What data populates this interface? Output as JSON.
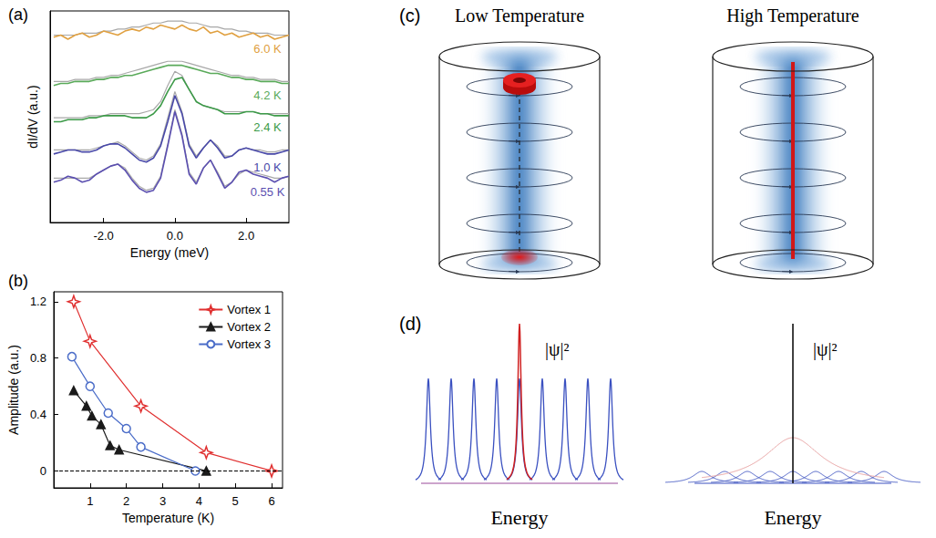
{
  "chart_data": [
    {
      "panel": "(a)",
      "type": "line",
      "x_label": "Energy (meV)",
      "y_label": "dI/dV (a.u.)",
      "x": [
        -3.4,
        -3.2,
        -3.0,
        -2.8,
        -2.6,
        -2.4,
        -2.2,
        -2.0,
        -1.8,
        -1.6,
        -1.4,
        -1.2,
        -1.0,
        -0.8,
        -0.6,
        -0.4,
        -0.2,
        0,
        0.2,
        0.4,
        0.6,
        0.8,
        1.0,
        1.2,
        1.4,
        1.6,
        1.8,
        2.0,
        2.2,
        2.4,
        2.6,
        2.8,
        3.0,
        3.2
      ],
      "xlim": [
        -3.5,
        3.2
      ],
      "xticks": [
        {
          "value": -2,
          "label": "-2.0"
        },
        {
          "value": 0,
          "label": "0.0"
        },
        {
          "value": 2,
          "label": "2.0"
        }
      ],
      "ylim": [
        0,
        10.5
      ],
      "tick_labels": "x",
      "series": [
        {
          "name": "6.0 K",
          "color": "#e0a040",
          "values": [
            9.2,
            9.3,
            9.1,
            9.3,
            9.4,
            9.2,
            9.3,
            9.5,
            9.4,
            9.3,
            9.5,
            9.6,
            9.5,
            9.7,
            9.6,
            9.8,
            9.7,
            9.6,
            9.8,
            9.6,
            9.5,
            9.7,
            9.4,
            9.5,
            9.3,
            9.4,
            9.2,
            9.3,
            9.4,
            9.2,
            9.3,
            9.1,
            9.2,
            9.3
          ],
          "fit": [
            9.3,
            9.3,
            9.3,
            9.3,
            9.4,
            9.4,
            9.4,
            9.5,
            9.5,
            9.6,
            9.6,
            9.7,
            9.7,
            9.8,
            9.9,
            9.9,
            10.0,
            10.0,
            10.0,
            9.9,
            9.9,
            9.8,
            9.7,
            9.7,
            9.6,
            9.6,
            9.5,
            9.5,
            9.4,
            9.4,
            9.4,
            9.3,
            9.3,
            9.3
          ]
        },
        {
          "name": "4.2 K",
          "color": "#5aaa5a",
          "values": [
            6.8,
            6.9,
            6.9,
            7.0,
            7.0,
            7.0,
            7.1,
            7.1,
            7.2,
            7.2,
            7.3,
            7.3,
            7.4,
            7.5,
            7.6,
            7.7,
            7.8,
            7.8,
            7.8,
            7.7,
            7.6,
            7.5,
            7.4,
            7.4,
            7.3,
            7.2,
            7.2,
            7.1,
            7.1,
            7.0,
            7.0,
            7.0,
            6.9,
            6.9
          ],
          "fit": [
            7.0,
            7.0,
            7.0,
            7.1,
            7.1,
            7.1,
            7.2,
            7.2,
            7.3,
            7.3,
            7.4,
            7.5,
            7.6,
            7.7,
            7.8,
            7.9,
            8.0,
            8.0,
            8.0,
            7.9,
            7.8,
            7.7,
            7.6,
            7.5,
            7.4,
            7.3,
            7.3,
            7.2,
            7.2,
            7.1,
            7.1,
            7.1,
            7.0,
            7.0
          ]
        },
        {
          "name": "2.4 K",
          "color": "#3c9a48",
          "values": [
            5.0,
            5.0,
            5.1,
            5.1,
            5.1,
            5.2,
            5.2,
            5.3,
            5.3,
            5.3,
            5.3,
            5.2,
            5.2,
            5.2,
            5.4,
            5.8,
            6.5,
            7.1,
            7.2,
            6.6,
            6.0,
            5.8,
            5.7,
            5.6,
            5.4,
            5.4,
            5.4,
            5.5,
            5.5,
            5.4,
            5.4,
            5.3,
            5.3,
            5.3
          ],
          "fit": [
            5.2,
            5.2,
            5.2,
            5.2,
            5.2,
            5.3,
            5.3,
            5.3,
            5.4,
            5.4,
            5.4,
            5.4,
            5.4,
            5.5,
            5.6,
            6.0,
            6.8,
            7.5,
            7.3,
            6.6,
            6.0,
            5.8,
            5.7,
            5.6,
            5.5,
            5.5,
            5.5,
            5.5,
            5.5,
            5.4,
            5.4,
            5.4,
            5.4,
            5.4
          ]
        },
        {
          "name": "1.0 K",
          "color": "#4848a8",
          "values": [
            3.4,
            3.5,
            3.6,
            3.6,
            3.5,
            3.5,
            3.6,
            3.8,
            3.9,
            3.9,
            3.7,
            3.4,
            3.1,
            3.0,
            3.2,
            3.8,
            5.0,
            6.3,
            5.4,
            3.8,
            3.2,
            3.7,
            4.1,
            3.7,
            3.2,
            3.3,
            3.6,
            3.7,
            3.6,
            3.5,
            3.4,
            3.4,
            3.5,
            3.6
          ],
          "fit": [
            3.6,
            3.6,
            3.6,
            3.6,
            3.6,
            3.6,
            3.7,
            3.8,
            3.9,
            4.0,
            3.8,
            3.5,
            3.2,
            3.1,
            3.3,
            3.9,
            5.2,
            6.5,
            5.5,
            3.9,
            3.3,
            3.7,
            4.1,
            3.8,
            3.3,
            3.3,
            3.6,
            3.7,
            3.6,
            3.6,
            3.5,
            3.5,
            3.6,
            3.6
          ]
        },
        {
          "name": "0.55 K",
          "color": "#5b4fb0",
          "values": [
            2.0,
            2.1,
            2.3,
            2.2,
            2.0,
            2.1,
            2.4,
            2.6,
            2.8,
            2.9,
            2.6,
            2.1,
            1.7,
            1.5,
            1.6,
            2.2,
            3.8,
            5.5,
            4.3,
            2.4,
            1.9,
            2.7,
            3.1,
            2.4,
            1.7,
            2.0,
            2.5,
            2.6,
            2.4,
            2.3,
            2.2,
            2.0,
            2.2,
            2.3
          ],
          "fit": [
            2.2,
            2.2,
            2.2,
            2.2,
            2.2,
            2.2,
            2.4,
            2.6,
            2.8,
            2.9,
            2.7,
            2.2,
            1.8,
            1.6,
            1.7,
            2.3,
            3.9,
            5.6,
            4.4,
            2.5,
            2.0,
            2.7,
            3.1,
            2.5,
            1.8,
            2.0,
            2.4,
            2.6,
            2.5,
            2.4,
            2.3,
            2.2,
            2.2,
            2.3
          ]
        }
      ]
    },
    {
      "panel": "(b)",
      "type": "line",
      "x_label": "Temperature (K)",
      "y_label": "Amplitude (a.u.)",
      "xlim": [
        0,
        6.3
      ],
      "xticks": [
        1,
        2,
        3,
        4,
        5,
        6
      ],
      "ylim": [
        -0.12,
        1.27
      ],
      "yticks": [
        0,
        0.4,
        0.8,
        1.2
      ],
      "legend": "upper right",
      "reference_line": 0,
      "series": [
        {
          "name": "Vortex 1",
          "color": "#e03030",
          "marker": "open_star",
          "x": [
            0.55,
            1.0,
            2.4,
            4.2,
            6.0
          ],
          "values": [
            1.2,
            0.92,
            0.46,
            0.13,
            0.0
          ]
        },
        {
          "name": "Vortex 2",
          "color": "#1a1a1a",
          "marker": "triangle",
          "x": [
            0.55,
            0.9,
            1.05,
            1.3,
            1.55,
            1.8,
            4.2
          ],
          "values": [
            0.57,
            0.46,
            0.39,
            0.33,
            0.18,
            0.15,
            0.0
          ]
        },
        {
          "name": "Vortex 3",
          "color": "#4a6cc8",
          "marker": "open_circle",
          "x": [
            0.5,
            1.0,
            1.5,
            2.0,
            2.4,
            3.9
          ],
          "values": [
            0.81,
            0.6,
            0.41,
            0.3,
            0.17,
            0.0
          ]
        }
      ]
    }
  ],
  "diagram": {
    "c": {
      "label": "(c)",
      "titles": [
        "Low Temperature",
        "High Temperature"
      ]
    },
    "d": {
      "label": "(d)",
      "plots": [
        {
          "y_label": "|ψ|²",
          "x_label": "Energy"
        },
        {
          "y_label": "|ψ|²",
          "x_label": "Energy"
        }
      ]
    }
  }
}
